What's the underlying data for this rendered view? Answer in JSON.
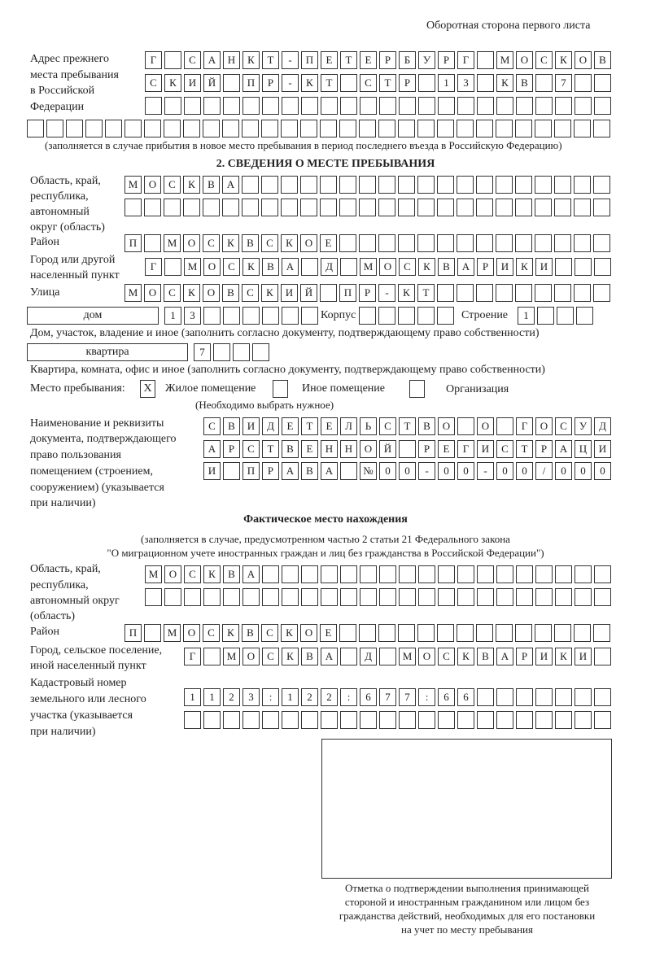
{
  "header": "Оборотная сторона первого листа",
  "prev_address": {
    "label": [
      "Адрес прежнего",
      "места пребывания",
      "в Российской",
      "Федерации"
    ],
    "rows": [
      [
        "Г",
        "",
        "С",
        "А",
        "Н",
        "К",
        "Т",
        "-",
        "П",
        "Е",
        "Т",
        "Е",
        "Р",
        "Б",
        "У",
        "Р",
        "Г",
        "",
        "М",
        "О",
        "С",
        "К",
        "О",
        "В"
      ],
      [
        "С",
        "К",
        "И",
        "Й",
        "",
        "П",
        "Р",
        "-",
        "К",
        "Т",
        "",
        "С",
        "Т",
        "Р",
        "",
        "1",
        "3",
        "",
        "К",
        "В",
        "",
        "7",
        "",
        ""
      ],
      [
        "",
        "",
        "",
        "",
        "",
        "",
        "",
        "",
        "",
        "",
        "",
        "",
        "",
        "",
        "",
        "",
        "",
        "",
        "",
        "",
        "",
        "",
        "",
        ""
      ],
      [
        "",
        "",
        "",
        "",
        "",
        "",
        "",
        "",
        "",
        "",
        "",
        "",
        "",
        "",
        "",
        "",
        "",
        "",
        "",
        "",
        "",
        "",
        "",
        "",
        "",
        "",
        "",
        "",
        "",
        ""
      ]
    ],
    "note": "(заполняется в случае прибытия в новое место пребывания в период последнего въезда в Российскую Федерацию)"
  },
  "section2": {
    "title": "2. СВЕДЕНИЯ О МЕСТЕ ПРЕБЫВАНИЯ",
    "region_label": [
      "Область, край,",
      "республика,",
      "автономный",
      "округ (область)"
    ],
    "region_rows": [
      [
        "М",
        "О",
        "С",
        "К",
        "В",
        "А",
        "",
        "",
        "",
        "",
        "",
        "",
        "",
        "",
        "",
        "",
        "",
        "",
        "",
        "",
        "",
        "",
        "",
        "",
        ""
      ],
      [
        "",
        "",
        "",
        "",
        "",
        "",
        "",
        "",
        "",
        "",
        "",
        "",
        "",
        "",
        "",
        "",
        "",
        "",
        "",
        "",
        "",
        "",
        "",
        "",
        ""
      ]
    ],
    "district_label": "Район",
    "district": [
      "П",
      "",
      "М",
      "О",
      "С",
      "К",
      "В",
      "С",
      "К",
      "О",
      "Е",
      "",
      "",
      "",
      "",
      "",
      "",
      "",
      "",
      "",
      "",
      "",
      "",
      "",
      ""
    ],
    "city_label": [
      "Город или другой",
      "населенный пункт"
    ],
    "city": [
      "Г",
      "",
      "М",
      "О",
      "С",
      "К",
      "В",
      "А",
      "",
      "Д",
      "",
      "М",
      "О",
      "С",
      "К",
      "В",
      "А",
      "Р",
      "И",
      "К",
      "И",
      "",
      "",
      ""
    ],
    "street_label": "Улица",
    "street": [
      "М",
      "О",
      "С",
      "К",
      "О",
      "В",
      "С",
      "К",
      "И",
      "Й",
      "",
      "П",
      "Р",
      "-",
      "К",
      "Т",
      "",
      "",
      "",
      "",
      "",
      "",
      "",
      "",
      ""
    ],
    "house_type": "дом",
    "house": [
      "1",
      "3",
      "",
      "",
      "",
      "",
      "",
      ""
    ],
    "building_label": "Корпус",
    "building": [
      "",
      "",
      "",
      "",
      ""
    ],
    "structure_label": "Строение",
    "structure": [
      "1",
      "",
      "",
      ""
    ],
    "house_note": "Дом, участок, владение и иное (заполнить согласно документу, подтверждающему право собственности)",
    "apt_type": "квартира",
    "apt": [
      "7",
      "",
      "",
      ""
    ],
    "apt_note": "Квартира, комната, офис и иное (заполнить согласно документу, подтверждающему право собственности)",
    "place_label": "Место пребывания:",
    "place_options": [
      {
        "label": "Жилое помещение",
        "mark": "X"
      },
      {
        "label": "Иное помещение",
        "mark": ""
      },
      {
        "label": "Организация",
        "mark": ""
      }
    ],
    "place_note": "(Необходимо выбрать нужное)",
    "doc_label": [
      "Наименование и реквизиты",
      "документа, подтверждающего",
      "право пользования",
      "помещением (строением,",
      "сооружением) (указывается",
      "при наличии)"
    ],
    "doc_rows": [
      [
        "С",
        "В",
        "И",
        "Д",
        "Е",
        "Т",
        "Е",
        "Л",
        "Ь",
        "С",
        "Т",
        "В",
        "О",
        "",
        "О",
        "",
        "Г",
        "О",
        "С",
        "У",
        "Д"
      ],
      [
        "А",
        "Р",
        "С",
        "Т",
        "В",
        "Е",
        "Н",
        "Н",
        "О",
        "Й",
        "",
        "Р",
        "Е",
        "Г",
        "И",
        "С",
        "Т",
        "Р",
        "А",
        "Ц",
        "И"
      ],
      [
        "И",
        "",
        "П",
        "Р",
        "А",
        "В",
        "А",
        "",
        "№",
        "0",
        "0",
        "-",
        "0",
        "0",
        "-",
        "0",
        "0",
        "/",
        "0",
        "0",
        "0"
      ]
    ]
  },
  "actual": {
    "title": "Фактическое место нахождения",
    "note1": "(заполняется в случае, предусмотренном частью 2 статьи 21 Федерального закона",
    "note2": "\"О миграционном учете иностранных граждан и лиц без гражданства в Российской Федерации\")",
    "region_label": [
      "Область, край,",
      "республика,",
      "автономный округ",
      "(область)"
    ],
    "region_rows": [
      [
        "М",
        "О",
        "С",
        "К",
        "В",
        "А",
        "",
        "",
        "",
        "",
        "",
        "",
        "",
        "",
        "",
        "",
        "",
        "",
        "",
        "",
        "",
        "",
        "",
        ""
      ],
      [
        "",
        "",
        "",
        "",
        "",
        "",
        "",
        "",
        "",
        "",
        "",
        "",
        "",
        "",
        "",
        "",
        "",
        "",
        "",
        "",
        "",
        "",
        "",
        ""
      ]
    ],
    "district_label": "Район",
    "district": [
      "П",
      "",
      "М",
      "О",
      "С",
      "К",
      "В",
      "С",
      "К",
      "О",
      "Е",
      "",
      "",
      "",
      "",
      "",
      "",
      "",
      "",
      "",
      "",
      "",
      "",
      "",
      ""
    ],
    "city_label": [
      "Город, сельское поселение,",
      "иной населенный пункт"
    ],
    "city": [
      "Г",
      "",
      "М",
      "О",
      "С",
      "К",
      "В",
      "А",
      "",
      "Д",
      "",
      "М",
      "О",
      "С",
      "К",
      "В",
      "А",
      "Р",
      "И",
      "К",
      "И",
      ""
    ],
    "cadastral_label": [
      "Кадастровый номер",
      "земельного или лесного",
      "участка (указывается",
      "при наличии)"
    ],
    "cadastral_rows": [
      [
        "1",
        "1",
        "2",
        "3",
        ":",
        "1",
        "2",
        "2",
        ":",
        "6",
        "7",
        "7",
        ":",
        "6",
        "6",
        "",
        "",
        "",
        "",
        "",
        "",
        ""
      ],
      [
        "",
        "",
        "",
        "",
        "",
        "",
        "",
        "",
        "",
        "",
        "",
        "",
        "",
        "",
        "",
        "",
        "",
        "",
        "",
        "",
        "",
        ""
      ]
    ]
  },
  "stamp_caption": [
    "Отметка о подтверждении выполнения принимающей",
    "стороной и иностранным гражданином или лицом без",
    "гражданства действий, необходимых для его постановки",
    "на учет по месту пребывания"
  ]
}
